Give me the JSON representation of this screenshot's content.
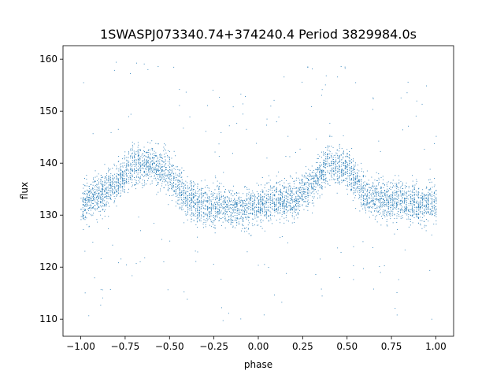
{
  "chart_data": {
    "type": "scatter",
    "title": "1SWASPJ073340.74+374240.4 Period 3829984.0s",
    "xlabel": "phase",
    "ylabel": "flux",
    "xlim": [
      -1.1,
      1.1
    ],
    "ylim": [
      106.7,
      162.6
    ],
    "xticks": [
      -1.0,
      -0.75,
      -0.5,
      -0.25,
      0.0,
      0.25,
      0.5,
      0.75,
      1.0
    ],
    "xtick_labels": [
      "−1.00",
      "−0.75",
      "−0.50",
      "−0.25",
      "0.00",
      "0.25",
      "0.50",
      "0.75",
      "1.00"
    ],
    "yticks": [
      110,
      120,
      130,
      140,
      150,
      160
    ],
    "ytick_labels": [
      "110",
      "120",
      "130",
      "140",
      "150",
      "160"
    ],
    "grid": false,
    "series": [
      {
        "color": "#1f77b4",
        "marker": "point",
        "x_range": [
          -1.0,
          1.0
        ],
        "y_range": [
          109.5,
          160.0
        ],
        "phase_profile_x": [
          -1.0,
          -0.9,
          -0.8,
          -0.7,
          -0.6,
          -0.5,
          -0.4,
          -0.3,
          -0.2,
          -0.1,
          0.0,
          0.1,
          0.2,
          0.3,
          0.4,
          0.5,
          0.6,
          0.7,
          0.8,
          0.9,
          1.0
        ],
        "phase_profile_y": [
          132,
          134,
          136,
          140,
          140,
          138,
          133,
          132,
          132,
          131,
          132,
          133,
          133,
          136,
          140,
          139,
          134,
          133,
          133,
          132,
          132
        ]
      }
    ]
  }
}
